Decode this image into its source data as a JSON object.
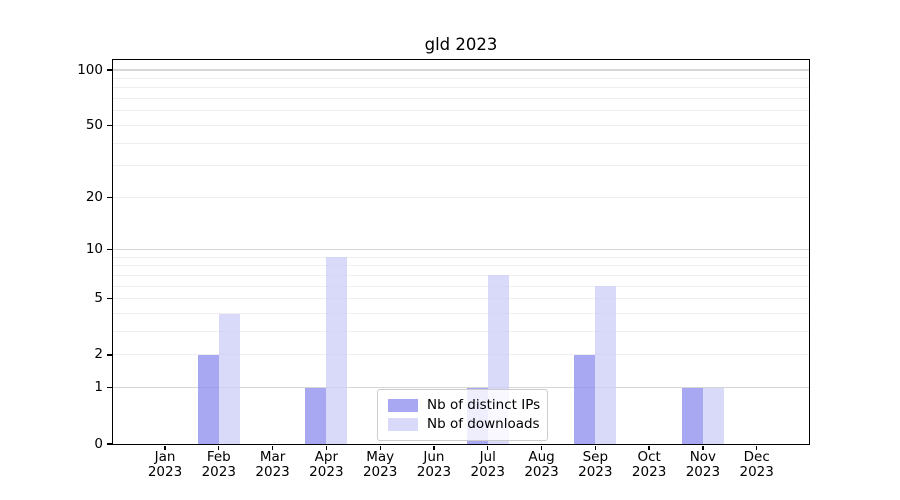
{
  "chart_data": {
    "type": "bar",
    "title": "gld 2023",
    "xlabel": "",
    "ylabel": "",
    "categories": [
      "Jan",
      "Feb",
      "Mar",
      "Apr",
      "May",
      "Jun",
      "Jul",
      "Aug",
      "Sep",
      "Oct",
      "Nov",
      "Dec"
    ],
    "x_year_label": "2023",
    "series": [
      {
        "name": "Nb of distinct IPs",
        "color": "#a8a8f2",
        "fill": "rgba(139,139,238,0.75)",
        "values": [
          0,
          2,
          0,
          1,
          0,
          0,
          1,
          0,
          2,
          0,
          1,
          0
        ]
      },
      {
        "name": "Nb of downloads",
        "color": "#d9d9f9",
        "fill": "rgba(204,204,247,0.75)",
        "values": [
          0,
          4,
          0,
          9,
          0,
          0,
          7,
          0,
          6,
          0,
          1,
          0
        ]
      }
    ],
    "yscale": "log1p",
    "ylim": [
      0,
      113
    ],
    "yticks": [
      0,
      1,
      2,
      5,
      10,
      20,
      50,
      100
    ],
    "grid": {
      "minor_values": [
        2,
        3,
        4,
        5,
        6,
        7,
        8,
        9,
        20,
        30,
        40,
        50,
        60,
        70,
        80,
        90
      ],
      "major_values": [
        1,
        10,
        100
      ],
      "minor_color": "#efefef",
      "major_color": "#d6d6d6"
    },
    "legend_position": "lower center",
    "axis_color": "#000000",
    "background_color": "#ffffff"
  }
}
